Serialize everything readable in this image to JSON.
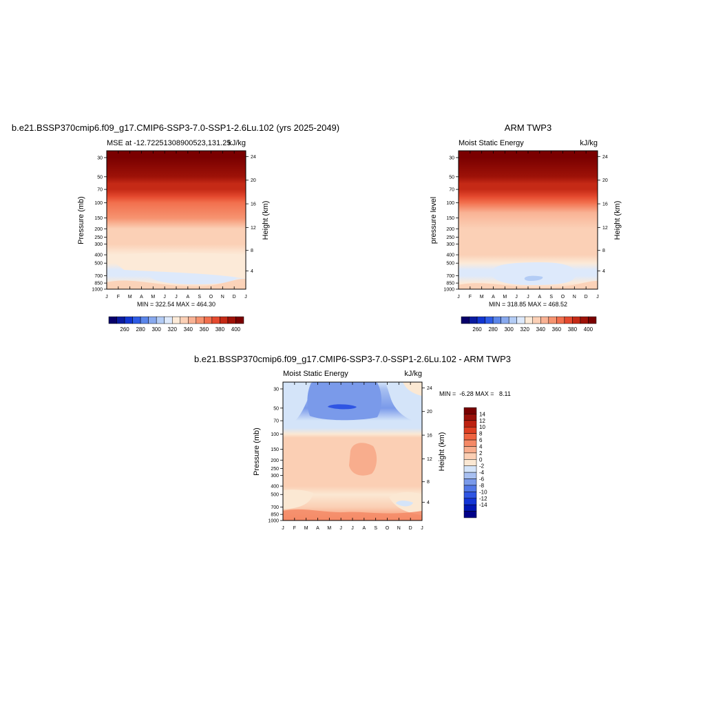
{
  "chart_data": [
    {
      "type": "heatmap",
      "title": "b.e21.BSSP370cmip6.f09_g17.CMIP6-SSP3-7.0-SSP1-2.6Lu.102 (yrs 2025-2049)",
      "subtitle_left": "MSE at -12.72251308900523,131.25",
      "subtitle_right": "kJ/kg",
      "xlabel": "",
      "ylabel": "Pressure (mb)",
      "ylabel_right": "Height (km)",
      "x": [
        "J",
        "F",
        "M",
        "A",
        "M",
        "J",
        "J",
        "A",
        "S",
        "O",
        "N",
        "D",
        "J"
      ],
      "y_ticks": [
        30,
        50,
        70,
        100,
        150,
        200,
        250,
        300,
        400,
        500,
        700,
        850,
        1000
      ],
      "y_scale": "log",
      "ylim": [
        1000,
        25
      ],
      "height_ticks": [
        4,
        8,
        12,
        16,
        20,
        24
      ],
      "stats": "MIN = 322.54 MAX = 464.30",
      "colorbar": {
        "orientation": "horizontal",
        "levels": [
          250,
          260,
          270,
          280,
          290,
          300,
          310,
          320,
          330,
          340,
          350,
          360,
          370,
          380,
          390,
          400,
          410
        ],
        "tick_labels": [
          "260",
          "280",
          "300",
          "320",
          "340",
          "360",
          "380",
          "400"
        ]
      },
      "profile_p": [
        25,
        30,
        50,
        60,
        70,
        85,
        100,
        150,
        200,
        300,
        400,
        500,
        600,
        700,
        850,
        1000
      ],
      "profile_values": [
        470,
        420,
        400,
        395,
        390,
        380,
        372,
        360,
        345,
        341,
        338,
        335,
        328,
        325,
        335,
        344
      ]
    },
    {
      "type": "heatmap",
      "title": "ARM TWP3",
      "subtitle_left": "Moist Static Energy",
      "subtitle_right": "kJ/kg",
      "xlabel": "",
      "ylabel": "pressure level",
      "ylabel_right": "Height (km)",
      "x": [
        "J",
        "F",
        "M",
        "A",
        "M",
        "J",
        "J",
        "A",
        "S",
        "O",
        "N",
        "D",
        "J"
      ],
      "y_ticks": [
        30,
        50,
        70,
        100,
        150,
        200,
        250,
        300,
        400,
        500,
        700,
        850,
        1000
      ],
      "y_scale": "log",
      "ylim": [
        1000,
        25
      ],
      "height_ticks": [
        4,
        8,
        12,
        16,
        20,
        24
      ],
      "stats": "MIN = 318.85 MAX = 468.52",
      "colorbar": {
        "orientation": "horizontal",
        "levels": [
          250,
          260,
          270,
          280,
          290,
          300,
          310,
          320,
          330,
          340,
          350,
          360,
          370,
          380,
          390,
          400,
          410
        ],
        "tick_labels": [
          "260",
          "280",
          "300",
          "320",
          "340",
          "360",
          "380",
          "400"
        ]
      },
      "profile_p": [
        25,
        30,
        50,
        60,
        70,
        85,
        100,
        130,
        200,
        300,
        400,
        500,
        600,
        700,
        850,
        1000
      ],
      "profile_values": [
        470,
        420,
        400,
        395,
        390,
        380,
        372,
        352,
        345,
        342,
        340,
        336,
        327,
        323,
        333,
        340
      ]
    },
    {
      "type": "heatmap",
      "title": "b.e21.BSSP370cmip6.f09_g17.CMIP6-SSP3-7.0-SSP1-2.6Lu.102 - ARM TWP3",
      "subtitle_left": "Moist Static Energy",
      "subtitle_right": "kJ/kg",
      "xlabel": "",
      "ylabel": "Pressure (mb)",
      "ylabel_right": "Height (km)",
      "x": [
        "J",
        "F",
        "M",
        "A",
        "M",
        "J",
        "J",
        "A",
        "S",
        "O",
        "N",
        "D",
        "J"
      ],
      "y_ticks": [
        30,
        50,
        70,
        100,
        150,
        200,
        250,
        300,
        400,
        500,
        700,
        850,
        1000
      ],
      "y_scale": "log",
      "ylim": [
        1000,
        25
      ],
      "height_ticks": [
        4,
        8,
        12,
        16,
        20,
        24
      ],
      "stats": "MIN =  -6.28 MAX =   8.11",
      "colorbar": {
        "orientation": "vertical",
        "levels": [
          -16,
          -14,
          -12,
          -10,
          -8,
          -6,
          -4,
          -2,
          0,
          2,
          4,
          6,
          8,
          10,
          12,
          14,
          16
        ],
        "tick_labels": [
          "14",
          "12",
          "10",
          "8",
          "6",
          "4",
          "2",
          "0",
          "-2",
          "-4",
          "-6",
          "-8",
          "-10",
          "-12",
          "-14"
        ]
      },
      "profile_p": [
        25,
        30,
        50,
        70,
        85,
        100,
        110,
        150,
        200,
        300,
        400,
        500,
        700,
        850,
        1000
      ],
      "profile_values": [
        -1,
        -3,
        -6,
        -2,
        -1,
        1,
        3,
        3,
        3.5,
        3,
        2.5,
        1.5,
        2,
        4,
        6
      ]
    }
  ],
  "colors": {
    "mse_palette": [
      "#08006a",
      "#0a1ba0",
      "#1236d1",
      "#2e5ce6",
      "#5b86ea",
      "#88a9ee",
      "#b3ccf5",
      "#dde9fb",
      "#fcead8",
      "#fbd0b6",
      "#f9b294",
      "#f69370",
      "#f2704e",
      "#e54a2f",
      "#c52a16",
      "#9e1208",
      "#7a0000"
    ],
    "diff_palette": [
      "#000088",
      "#0016b4",
      "#1234d6",
      "#2f55e3",
      "#5278e6",
      "#7a9aea",
      "#a8c0f1",
      "#d4e4f9",
      "#fbe8d3",
      "#fbcfb4",
      "#f8ad8d",
      "#f58966",
      "#ef6441",
      "#de3f22",
      "#bd2110",
      "#991009",
      "#780000"
    ]
  }
}
